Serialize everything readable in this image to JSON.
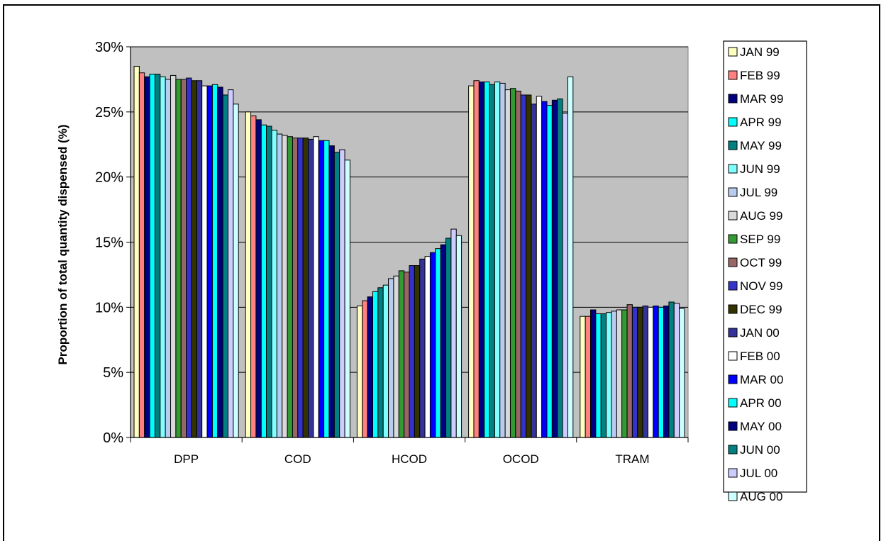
{
  "chart_data": {
    "type": "bar",
    "title": "",
    "xlabel": "",
    "ylabel": "Proportion of total quantity dispensed (%)",
    "ylim": [
      0,
      30
    ],
    "y_ticks": [
      "0%",
      "5%",
      "10%",
      "15%",
      "20%",
      "25%",
      "30%"
    ],
    "y_tick_values": [
      0,
      5,
      10,
      15,
      20,
      25,
      30
    ],
    "grid": true,
    "legend_position": "right",
    "plot_background": "#c0c0c0",
    "categories": [
      "DPP",
      "COD",
      "HCOD",
      "OCOD",
      "TRAM"
    ],
    "series": [
      {
        "name": "JAN 99",
        "color": "#ffffc0",
        "values": [
          28.5,
          25.0,
          10.1,
          27.0,
          9.3
        ]
      },
      {
        "name": "FEB 99",
        "color": "#ff8080",
        "values": [
          28.0,
          24.7,
          10.5,
          27.4,
          9.3
        ]
      },
      {
        "name": "MAR 99",
        "color": "#000080",
        "values": [
          27.7,
          24.4,
          10.8,
          27.3,
          9.8
        ]
      },
      {
        "name": "APR 99",
        "color": "#00ffff",
        "values": [
          27.9,
          24.0,
          11.2,
          27.3,
          9.5
        ]
      },
      {
        "name": "MAY 99",
        "color": "#008080",
        "values": [
          27.9,
          23.9,
          11.5,
          27.1,
          9.5
        ]
      },
      {
        "name": "JUN 99",
        "color": "#80ffff",
        "values": [
          27.7,
          23.6,
          11.7,
          27.3,
          9.6
        ]
      },
      {
        "name": "JUL 99",
        "color": "#b8ccf0",
        "values": [
          27.5,
          23.3,
          12.2,
          27.2,
          9.7
        ]
      },
      {
        "name": "AUG 99",
        "color": "#d9d9d9",
        "values": [
          27.8,
          23.2,
          12.4,
          26.7,
          9.8
        ]
      },
      {
        "name": "SEP 99",
        "color": "#339933",
        "values": [
          27.5,
          23.1,
          12.8,
          26.8,
          9.8
        ]
      },
      {
        "name": "OCT 99",
        "color": "#996666",
        "values": [
          27.5,
          23.0,
          12.7,
          26.6,
          10.2
        ]
      },
      {
        "name": "NOV 99",
        "color": "#3333cc",
        "values": [
          27.6,
          23.0,
          13.2,
          26.3,
          10.0
        ]
      },
      {
        "name": "DEC 99",
        "color": "#333300",
        "values": [
          27.4,
          23.0,
          13.2,
          26.3,
          10.0
        ]
      },
      {
        "name": "JAN 00",
        "color": "#333399",
        "values": [
          27.4,
          22.9,
          13.7,
          25.6,
          10.1
        ]
      },
      {
        "name": "FEB 00",
        "color": "#ffffff",
        "values": [
          27.0,
          23.1,
          13.9,
          26.2,
          10.0
        ]
      },
      {
        "name": "MAR 00",
        "color": "#0000ff",
        "values": [
          27.0,
          22.8,
          14.2,
          25.8,
          10.1
        ]
      },
      {
        "name": "APR 00",
        "color": "#00ffff",
        "values": [
          27.1,
          22.8,
          14.5,
          25.5,
          10.0
        ]
      },
      {
        "name": "MAY 00",
        "color": "#000080",
        "values": [
          26.9,
          22.4,
          14.8,
          25.9,
          10.1
        ]
      },
      {
        "name": "JUN 00",
        "color": "#008080",
        "values": [
          26.3,
          21.9,
          15.3,
          26.0,
          10.4
        ]
      },
      {
        "name": "JUL 00",
        "color": "#ccccff",
        "values": [
          26.7,
          22.1,
          16.0,
          24.9,
          10.3
        ]
      },
      {
        "name": "AUG 00",
        "color": "#ccffff",
        "values": [
          25.6,
          21.3,
          15.5,
          27.7,
          9.9
        ]
      }
    ]
  }
}
